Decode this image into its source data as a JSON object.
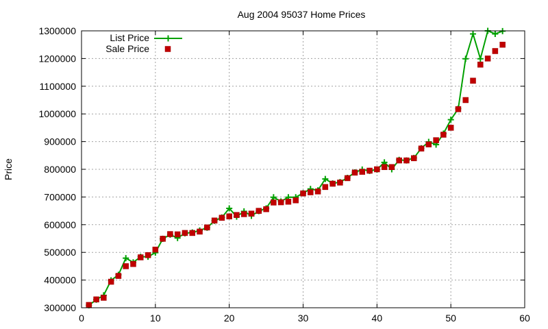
{
  "chart_data": {
    "type": "line",
    "title": "Aug 2004 95037 Home Prices",
    "xlabel": "",
    "ylabel": "Price",
    "xlim": [
      0,
      60
    ],
    "ylim": [
      300000,
      1300000
    ],
    "x_ticks": [
      0,
      10,
      20,
      30,
      40,
      50,
      60
    ],
    "y_ticks": [
      300000,
      400000,
      500000,
      600000,
      700000,
      800000,
      900000,
      1000000,
      1100000,
      1200000,
      1300000
    ],
    "grid": true,
    "legend_position": "top-left",
    "series": [
      {
        "name": "List Price",
        "style": "line-plus",
        "color": "#00a000",
        "points": [
          [
            1,
            309000
          ],
          [
            2,
            329000
          ],
          [
            3,
            345000
          ],
          [
            4,
            399000
          ],
          [
            5,
            419000
          ],
          [
            6,
            479000
          ],
          [
            7,
            464000
          ],
          [
            8,
            484000
          ],
          [
            9,
            484000
          ],
          [
            10,
            499000
          ],
          [
            11,
            549000
          ],
          [
            12,
            564000
          ],
          [
            13,
            552000
          ],
          [
            14,
            569000
          ],
          [
            15,
            572000
          ],
          [
            16,
            579000
          ],
          [
            17,
            589000
          ],
          [
            18,
            614000
          ],
          [
            19,
            626000
          ],
          [
            20,
            659000
          ],
          [
            21,
            629000
          ],
          [
            22,
            648000
          ],
          [
            23,
            632000
          ],
          [
            24,
            649000
          ],
          [
            25,
            659000
          ],
          [
            26,
            699000
          ],
          [
            27,
            684000
          ],
          [
            28,
            699000
          ],
          [
            29,
            699000
          ],
          [
            30,
            714000
          ],
          [
            31,
            729000
          ],
          [
            32,
            724000
          ],
          [
            33,
            765000
          ],
          [
            34,
            749000
          ],
          [
            35,
            754000
          ],
          [
            36,
            769000
          ],
          [
            37,
            789000
          ],
          [
            38,
            799000
          ],
          [
            39,
            794000
          ],
          [
            40,
            799000
          ],
          [
            41,
            825000
          ],
          [
            42,
            800000
          ],
          [
            43,
            834000
          ],
          [
            44,
            832000
          ],
          [
            45,
            841000
          ],
          [
            46,
            876000
          ],
          [
            47,
            899000
          ],
          [
            48,
            889000
          ],
          [
            49,
            929000
          ],
          [
            50,
            979000
          ],
          [
            51,
            1019000
          ],
          [
            52,
            1199000
          ],
          [
            53,
            1289000
          ],
          [
            54,
            1199000
          ],
          [
            55,
            1300000
          ],
          [
            56,
            1289000
          ],
          [
            57,
            1299000
          ]
        ]
      },
      {
        "name": "Sale Price",
        "style": "points-square",
        "color": "#c00000",
        "points": [
          [
            1,
            310000
          ],
          [
            2,
            330000
          ],
          [
            3,
            336000
          ],
          [
            4,
            394000
          ],
          [
            5,
            415000
          ],
          [
            6,
            450000
          ],
          [
            7,
            458000
          ],
          [
            8,
            482000
          ],
          [
            9,
            490000
          ],
          [
            10,
            510000
          ],
          [
            11,
            549000
          ],
          [
            12,
            566000
          ],
          [
            13,
            565000
          ],
          [
            14,
            570000
          ],
          [
            15,
            570000
          ],
          [
            16,
            575000
          ],
          [
            17,
            590000
          ],
          [
            18,
            615000
          ],
          [
            19,
            625000
          ],
          [
            20,
            630000
          ],
          [
            21,
            635000
          ],
          [
            22,
            638000
          ],
          [
            23,
            640000
          ],
          [
            24,
            650000
          ],
          [
            25,
            656000
          ],
          [
            26,
            680000
          ],
          [
            27,
            681000
          ],
          [
            28,
            683000
          ],
          [
            29,
            688000
          ],
          [
            30,
            713000
          ],
          [
            31,
            717000
          ],
          [
            32,
            720000
          ],
          [
            33,
            736000
          ],
          [
            34,
            748000
          ],
          [
            35,
            752000
          ],
          [
            36,
            768000
          ],
          [
            37,
            788000
          ],
          [
            38,
            791000
          ],
          [
            39,
            795000
          ],
          [
            40,
            800000
          ],
          [
            41,
            808000
          ],
          [
            42,
            808000
          ],
          [
            43,
            832000
          ],
          [
            44,
            832000
          ],
          [
            45,
            840000
          ],
          [
            46,
            875000
          ],
          [
            47,
            890000
          ],
          [
            48,
            905000
          ],
          [
            49,
            925000
          ],
          [
            50,
            950000
          ],
          [
            51,
            1017000
          ],
          [
            52,
            1050000
          ],
          [
            53,
            1120000
          ],
          [
            54,
            1178000
          ],
          [
            55,
            1200000
          ],
          [
            56,
            1227000
          ],
          [
            57,
            1250000
          ]
        ]
      }
    ]
  }
}
